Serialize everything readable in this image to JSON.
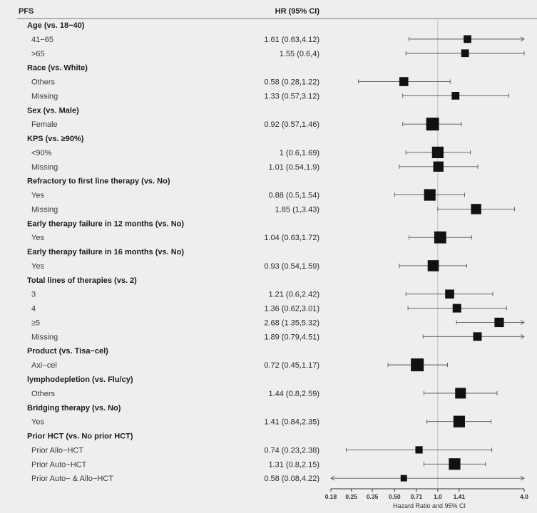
{
  "chart_data": {
    "type": "forest",
    "title": "PFS",
    "estimate_header": "HR (95% CI)",
    "xlabel": "Hazard Ratio and 95% CI",
    "x_scale": "log",
    "xlim": [
      0.18,
      4.0
    ],
    "reference_line": 1.0,
    "ticks": [
      {
        "value": 0.18,
        "label": "0.18"
      },
      {
        "value": 0.25,
        "label": "0.25"
      },
      {
        "value": 0.35,
        "label": "0.35"
      },
      {
        "value": 0.5,
        "label": "0.50"
      },
      {
        "value": 0.71,
        "label": "0.71"
      },
      {
        "value": 1.0,
        "label": "1.0"
      },
      {
        "value": 1.41,
        "label": "1.41"
      },
      {
        "value": 4.0,
        "label": "4.0"
      }
    ],
    "rows": [
      {
        "kind": "group",
        "label": "Age (vs. 18−40)"
      },
      {
        "kind": "item",
        "label": "41−65",
        "text": "1.61 (0.63,4.12)",
        "hr": 1.61,
        "lo": 0.63,
        "hi": 4.12,
        "weight": 0.4
      },
      {
        "kind": "item",
        "label": ">65",
        "text": "1.55 (0.6,4)",
        "hr": 1.55,
        "lo": 0.6,
        "hi": 4.0,
        "weight": 0.4
      },
      {
        "kind": "group",
        "label": "Race (vs. White)"
      },
      {
        "kind": "item",
        "label": "Others",
        "text": "0.58 (0.28,1.22)",
        "hr": 0.58,
        "lo": 0.28,
        "hi": 1.22,
        "weight": 0.55
      },
      {
        "kind": "item",
        "label": "Missing",
        "text": "1.33 (0.57,3.12)",
        "hr": 1.33,
        "lo": 0.57,
        "hi": 3.12,
        "weight": 0.4
      },
      {
        "kind": "group",
        "label": "Sex (vs. Male)"
      },
      {
        "kind": "item",
        "label": "Female",
        "text": "0.92 (0.57,1.46)",
        "hr": 0.92,
        "lo": 0.57,
        "hi": 1.46,
        "weight": 1.0
      },
      {
        "kind": "group",
        "label": "KPS (vs. ≥90%)"
      },
      {
        "kind": "item",
        "label": "<90%",
        "text": "1 (0.6,1.69)",
        "hr": 1.0,
        "lo": 0.6,
        "hi": 1.69,
        "weight": 0.85
      },
      {
        "kind": "item",
        "label": "Missing",
        "text": "1.01 (0.54,1.9)",
        "hr": 1.01,
        "lo": 0.54,
        "hi": 1.9,
        "weight": 0.7
      },
      {
        "kind": "group",
        "label": "Refractory to first line therapy (vs. No)"
      },
      {
        "kind": "item",
        "label": "Yes",
        "text": "0.88 (0.5,1.54)",
        "hr": 0.88,
        "lo": 0.5,
        "hi": 1.54,
        "weight": 0.85
      },
      {
        "kind": "item",
        "label": "Missing",
        "text": "1.85 (1,3.43)",
        "hr": 1.85,
        "lo": 1.0,
        "hi": 3.43,
        "weight": 0.7
      },
      {
        "kind": "group",
        "label": "Early therapy failure in 12 months (vs. No)"
      },
      {
        "kind": "item",
        "label": "Yes",
        "text": "1.04 (0.63,1.72)",
        "hr": 1.04,
        "lo": 0.63,
        "hi": 1.72,
        "weight": 0.9
      },
      {
        "kind": "group",
        "label": "Early therapy failure in 16 months (vs. No)"
      },
      {
        "kind": "item",
        "label": "Yes",
        "text": "0.93 (0.54,1.59)",
        "hr": 0.93,
        "lo": 0.54,
        "hi": 1.59,
        "weight": 0.8
      },
      {
        "kind": "group",
        "label": "Total lines of therapies (vs. 2)"
      },
      {
        "kind": "item",
        "label": "3",
        "text": "1.21 (0.6,2.42)",
        "hr": 1.21,
        "lo": 0.6,
        "hi": 2.42,
        "weight": 0.55
      },
      {
        "kind": "item",
        "label": "4",
        "text": "1.36 (0.62,3.01)",
        "hr": 1.36,
        "lo": 0.62,
        "hi": 3.01,
        "weight": 0.5
      },
      {
        "kind": "item",
        "label": "≥5",
        "text": "2.68 (1.35,5.32)",
        "hr": 2.68,
        "lo": 1.35,
        "hi": 5.32,
        "weight": 0.6
      },
      {
        "kind": "item",
        "label": "Missing",
        "text": "1.89 (0.79,4.51)",
        "hr": 1.89,
        "lo": 0.79,
        "hi": 4.51,
        "weight": 0.5
      },
      {
        "kind": "group",
        "label": "Product (vs. Tisa−cel)"
      },
      {
        "kind": "item",
        "label": "Axi−cel",
        "text": "0.72 (0.45,1.17)",
        "hr": 0.72,
        "lo": 0.45,
        "hi": 1.17,
        "weight": 1.0
      },
      {
        "kind": "group",
        "label": "lymphodepletion (vs. Flu/cy)"
      },
      {
        "kind": "item",
        "label": "Others",
        "text": "1.44 (0.8,2.59)",
        "hr": 1.44,
        "lo": 0.8,
        "hi": 2.59,
        "weight": 0.75
      },
      {
        "kind": "group",
        "label": "Bridging therapy (vs. No)"
      },
      {
        "kind": "item",
        "label": "Yes",
        "text": "1.41 (0.84,2.35)",
        "hr": 1.41,
        "lo": 0.84,
        "hi": 2.35,
        "weight": 0.85
      },
      {
        "kind": "group",
        "label": "Prior HCT (vs. No prior HCT)"
      },
      {
        "kind": "item",
        "label": "Prior Allo−HCT",
        "text": "0.74 (0.23,2.38)",
        "hr": 0.74,
        "lo": 0.23,
        "hi": 2.38,
        "weight": 0.35
      },
      {
        "kind": "item",
        "label": "Prior Auto−HCT",
        "text": "1.31 (0.8,2.15)",
        "hr": 1.31,
        "lo": 0.8,
        "hi": 2.15,
        "weight": 0.85
      },
      {
        "kind": "item",
        "label": "Prior Auto− & Allo−HCT",
        "text": "0.58 (0.08,4.22)",
        "hr": 0.58,
        "lo": 0.08,
        "hi": 4.22,
        "weight": 0.25
      }
    ]
  }
}
